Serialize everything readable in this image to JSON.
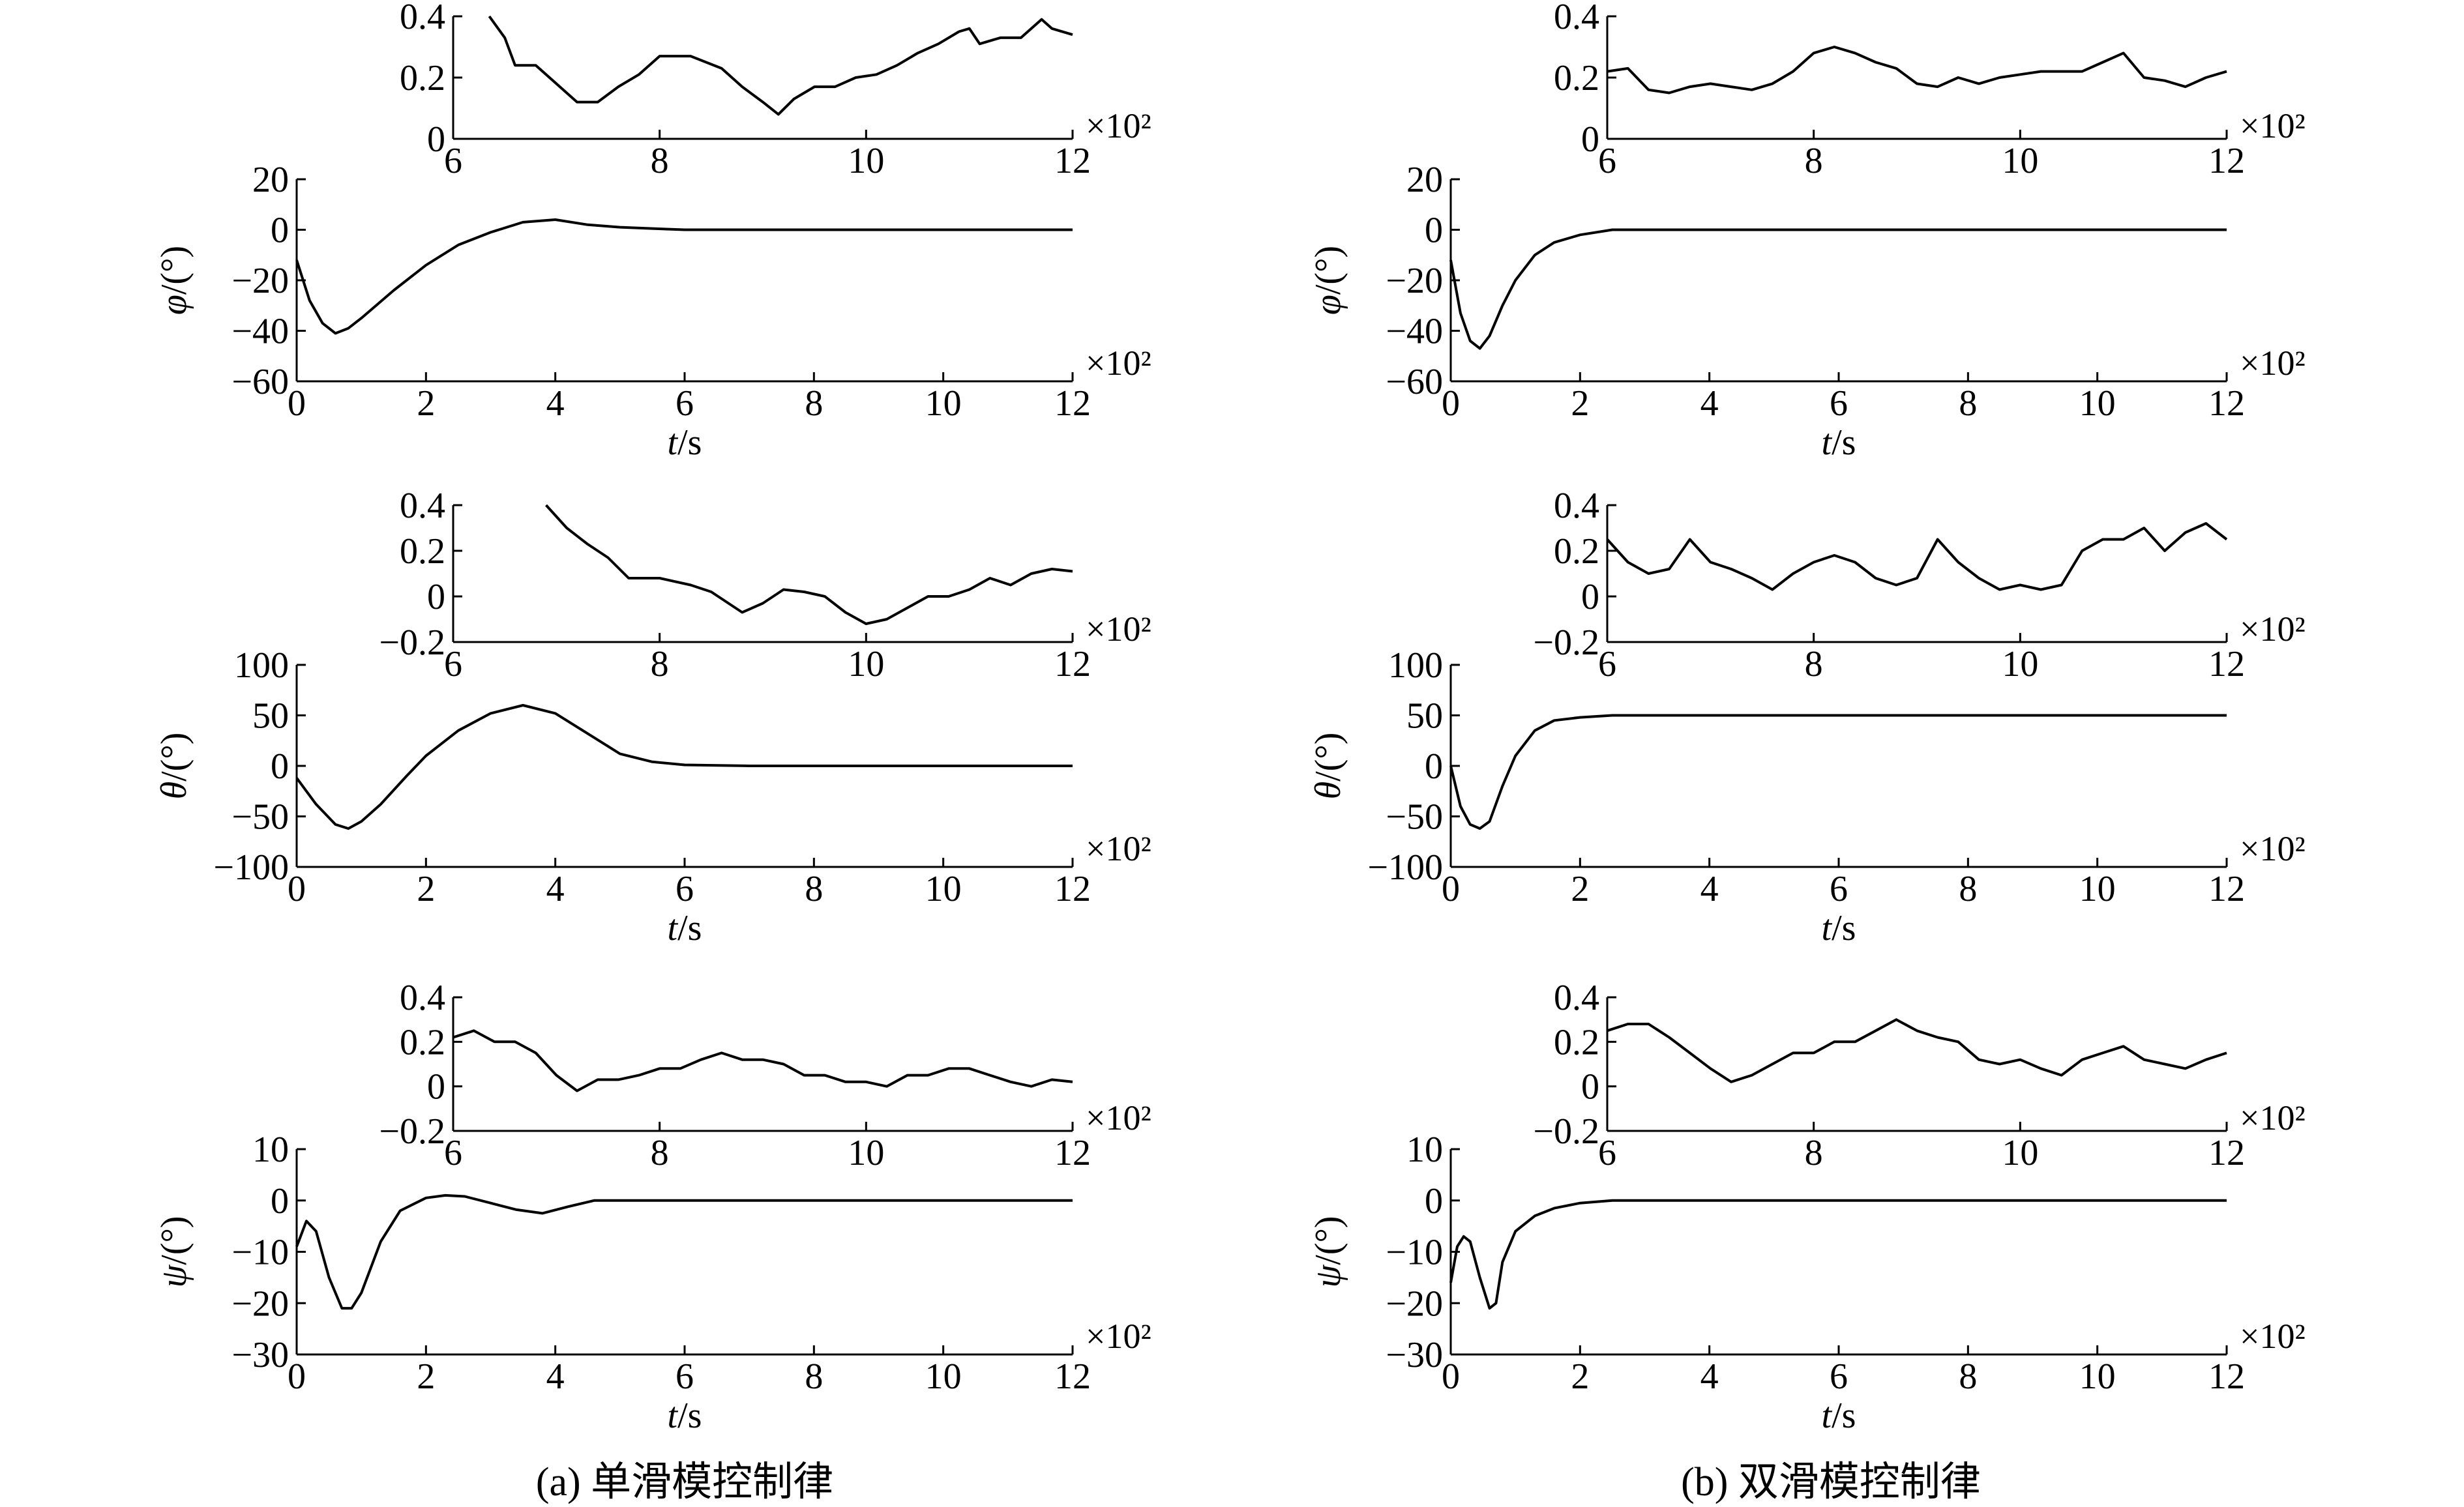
{
  "figure": {
    "caption_a": "(a) 单滑模控制律",
    "caption_b": "(b) 双滑模控制律"
  },
  "chart_data": [
    {
      "id": "a-phi-inset",
      "type": "line",
      "xlabel": "",
      "ylabel": "",
      "xlim": [
        6,
        12
      ],
      "ylim": [
        0,
        0.4
      ],
      "xticks": [
        "6",
        "8",
        "10",
        "12"
      ],
      "yticks": [
        "0",
        "0.2",
        "0.4"
      ],
      "xscale_label": "×10²",
      "series": [
        {
          "x": [
            6.35,
            6.5,
            6.6,
            6.8,
            7.0,
            7.2,
            7.4,
            7.6,
            7.8,
            8.0,
            8.3,
            8.6,
            8.8,
            9.0,
            9.15,
            9.3,
            9.5,
            9.7,
            9.9,
            10.1,
            10.3,
            10.5,
            10.7,
            10.9,
            11.0,
            11.1,
            11.3,
            11.5,
            11.7,
            11.8,
            12.0
          ],
          "y": [
            0.4,
            0.33,
            0.24,
            0.24,
            0.18,
            0.12,
            0.12,
            0.17,
            0.21,
            0.27,
            0.27,
            0.23,
            0.17,
            0.12,
            0.08,
            0.13,
            0.17,
            0.17,
            0.2,
            0.21,
            0.24,
            0.28,
            0.31,
            0.35,
            0.36,
            0.31,
            0.33,
            0.33,
            0.39,
            0.36,
            0.34
          ]
        }
      ]
    },
    {
      "id": "a-phi",
      "type": "line",
      "xlabel": "t/s",
      "ylabel": "φ/(°)",
      "xlim": [
        0,
        12
      ],
      "ylim": [
        -60,
        20
      ],
      "xticks": [
        "0",
        "2",
        "4",
        "6",
        "8",
        "10",
        "12"
      ],
      "yticks": [
        "-60",
        "-40",
        "-20",
        "0",
        "20"
      ],
      "xscale_label": "×10²",
      "series": [
        {
          "x": [
            0,
            0.2,
            0.4,
            0.6,
            0.8,
            1.0,
            1.5,
            2.0,
            2.5,
            3.0,
            3.5,
            4.0,
            4.5,
            5.0,
            5.5,
            6.0,
            6.5,
            7,
            8,
            9,
            10,
            11,
            12
          ],
          "y": [
            -12,
            -28,
            -37,
            -41,
            -39,
            -35,
            -24,
            -14,
            -6,
            -1,
            3,
            4,
            2,
            1,
            0.5,
            0,
            0,
            0,
            0,
            0,
            0,
            0,
            0
          ]
        }
      ]
    },
    {
      "id": "a-theta-inset",
      "type": "line",
      "xlabel": "",
      "ylabel": "",
      "xlim": [
        6,
        12
      ],
      "ylim": [
        -0.2,
        0.4
      ],
      "xticks": [
        "6",
        "8",
        "10",
        "12"
      ],
      "yticks": [
        "-0.2",
        "0",
        "0.2",
        "0.4"
      ],
      "xscale_label": "×10²",
      "series": [
        {
          "x": [
            6.9,
            7.1,
            7.3,
            7.5,
            7.7,
            8.0,
            8.3,
            8.5,
            8.8,
            9.0,
            9.2,
            9.4,
            9.6,
            9.8,
            10.0,
            10.2,
            10.4,
            10.6,
            10.8,
            11.0,
            11.2,
            11.4,
            11.6,
            11.8,
            12.0
          ],
          "y": [
            0.4,
            0.3,
            0.23,
            0.17,
            0.08,
            0.08,
            0.05,
            0.02,
            -0.07,
            -0.03,
            0.03,
            0.02,
            0.0,
            -0.07,
            -0.12,
            -0.1,
            -0.05,
            0.0,
            0.0,
            0.03,
            0.08,
            0.05,
            0.1,
            0.12,
            0.11
          ]
        }
      ]
    },
    {
      "id": "a-theta",
      "type": "line",
      "xlabel": "t/s",
      "ylabel": "θ/(°)",
      "xlim": [
        0,
        12
      ],
      "ylim": [
        -100,
        100
      ],
      "xticks": [
        "0",
        "2",
        "4",
        "6",
        "8",
        "10",
        "12"
      ],
      "yticks": [
        "-100",
        "-50",
        "0",
        "50",
        "100"
      ],
      "xscale_label": "×10²",
      "series": [
        {
          "x": [
            0,
            0.3,
            0.6,
            0.8,
            1.0,
            1.3,
            1.7,
            2.0,
            2.5,
            3.0,
            3.5,
            4.0,
            4.5,
            5.0,
            5.5,
            6.0,
            7,
            8,
            9,
            10,
            11,
            12
          ],
          "y": [
            -12,
            -38,
            -58,
            -62,
            -55,
            -38,
            -10,
            10,
            35,
            52,
            60,
            52,
            32,
            12,
            4,
            1,
            0,
            0,
            0,
            0,
            0,
            0
          ]
        }
      ]
    },
    {
      "id": "a-psi-inset",
      "type": "line",
      "xlabel": "",
      "ylabel": "",
      "xlim": [
        6,
        12
      ],
      "ylim": [
        -0.2,
        0.4
      ],
      "xticks": [
        "6",
        "8",
        "10",
        "12"
      ],
      "yticks": [
        "-0.2",
        "0",
        "0.2",
        "0.4"
      ],
      "xscale_label": "×10²",
      "series": [
        {
          "x": [
            6.0,
            6.2,
            6.4,
            6.6,
            6.8,
            7.0,
            7.2,
            7.4,
            7.6,
            7.8,
            8.0,
            8.2,
            8.4,
            8.6,
            8.8,
            9.0,
            9.2,
            9.4,
            9.6,
            9.8,
            10.0,
            10.2,
            10.4,
            10.6,
            10.8,
            11.0,
            11.2,
            11.4,
            11.6,
            11.8,
            12.0
          ],
          "y": [
            0.22,
            0.25,
            0.2,
            0.2,
            0.15,
            0.05,
            -0.02,
            0.03,
            0.03,
            0.05,
            0.08,
            0.08,
            0.12,
            0.15,
            0.12,
            0.12,
            0.1,
            0.05,
            0.05,
            0.02,
            0.02,
            0.0,
            0.05,
            0.05,
            0.08,
            0.08,
            0.05,
            0.02,
            0.0,
            0.03,
            0.02
          ]
        }
      ]
    },
    {
      "id": "a-psi",
      "type": "line",
      "xlabel": "t/s",
      "ylabel": "ψ/(°)",
      "xlim": [
        0,
        12
      ],
      "ylim": [
        -30,
        10
      ],
      "xticks": [
        "0",
        "2",
        "4",
        "6",
        "8",
        "10",
        "12"
      ],
      "yticks": [
        "-30",
        "-20",
        "-10",
        "0",
        "10"
      ],
      "xscale_label": "×10²",
      "series": [
        {
          "x": [
            0,
            0.15,
            0.3,
            0.5,
            0.7,
            0.85,
            1.0,
            1.3,
            1.6,
            2.0,
            2.3,
            2.6,
            3.0,
            3.4,
            3.8,
            4.2,
            4.6,
            5.0,
            6,
            7,
            8,
            9,
            10,
            11,
            12
          ],
          "y": [
            -9,
            -4,
            -6,
            -15,
            -21,
            -21,
            -18,
            -8,
            -2,
            0.5,
            1,
            0.8,
            -0.5,
            -1.8,
            -2.5,
            -1.2,
            0,
            0,
            0,
            0,
            0,
            0,
            0,
            0,
            0
          ]
        }
      ]
    },
    {
      "id": "b-phi-inset",
      "type": "line",
      "xlabel": "",
      "ylabel": "",
      "xlim": [
        6,
        12
      ],
      "ylim": [
        0,
        0.4
      ],
      "xticks": [
        "6",
        "8",
        "10",
        "12"
      ],
      "yticks": [
        "0",
        "0.2",
        "0.4"
      ],
      "xscale_label": "×10²",
      "series": [
        {
          "x": [
            6.0,
            6.2,
            6.4,
            6.6,
            6.8,
            7.0,
            7.2,
            7.4,
            7.6,
            7.8,
            8.0,
            8.2,
            8.4,
            8.6,
            8.8,
            9.0,
            9.2,
            9.4,
            9.6,
            9.8,
            10.0,
            10.2,
            10.4,
            10.6,
            10.8,
            11.0,
            11.2,
            11.4,
            11.6,
            11.8,
            12.0
          ],
          "y": [
            0.22,
            0.23,
            0.16,
            0.15,
            0.17,
            0.18,
            0.17,
            0.16,
            0.18,
            0.22,
            0.28,
            0.3,
            0.28,
            0.25,
            0.23,
            0.18,
            0.17,
            0.2,
            0.18,
            0.2,
            0.21,
            0.22,
            0.22,
            0.22,
            0.25,
            0.28,
            0.2,
            0.19,
            0.17,
            0.2,
            0.22
          ]
        }
      ]
    },
    {
      "id": "b-phi",
      "type": "line",
      "xlabel": "t/s",
      "ylabel": "φ/(°)",
      "xlim": [
        0,
        12
      ],
      "ylim": [
        -60,
        20
      ],
      "xticks": [
        "0",
        "2",
        "4",
        "6",
        "8",
        "10",
        "12"
      ],
      "yticks": [
        "-60",
        "-40",
        "-20",
        "0",
        "20"
      ],
      "xscale_label": "×10²",
      "series": [
        {
          "x": [
            0,
            0.15,
            0.3,
            0.45,
            0.6,
            0.8,
            1.0,
            1.3,
            1.6,
            2.0,
            2.5,
            3,
            4,
            5,
            6,
            7,
            8,
            9,
            10,
            11,
            12
          ],
          "y": [
            -12,
            -33,
            -44,
            -47,
            -42,
            -30,
            -20,
            -10,
            -5,
            -2,
            0,
            0,
            0,
            0,
            0,
            0,
            0,
            0,
            0,
            0,
            0
          ]
        }
      ]
    },
    {
      "id": "b-theta-inset",
      "type": "line",
      "xlabel": "",
      "ylabel": "",
      "xlim": [
        6,
        12
      ],
      "ylim": [
        -0.2,
        0.4
      ],
      "xticks": [
        "6",
        "8",
        "10",
        "12"
      ],
      "yticks": [
        "-0.2",
        "0",
        "0.2",
        "0.4"
      ],
      "xscale_label": "×10²",
      "series": [
        {
          "x": [
            6.0,
            6.2,
            6.4,
            6.6,
            6.8,
            7.0,
            7.2,
            7.4,
            7.6,
            7.8,
            8.0,
            8.2,
            8.4,
            8.6,
            8.8,
            9.0,
            9.2,
            9.4,
            9.6,
            9.8,
            10.0,
            10.2,
            10.4,
            10.6,
            10.8,
            11.0,
            11.2,
            11.4,
            11.6,
            11.8,
            12.0
          ],
          "y": [
            0.25,
            0.15,
            0.1,
            0.12,
            0.25,
            0.15,
            0.12,
            0.08,
            0.03,
            0.1,
            0.15,
            0.18,
            0.15,
            0.08,
            0.05,
            0.08,
            0.25,
            0.15,
            0.08,
            0.03,
            0.05,
            0.03,
            0.05,
            0.2,
            0.25,
            0.25,
            0.3,
            0.2,
            0.28,
            0.32,
            0.25
          ]
        }
      ]
    },
    {
      "id": "b-theta",
      "type": "line",
      "xlabel": "t/s",
      "ylabel": "θ/(°)",
      "xlim": [
        0,
        12
      ],
      "ylim": [
        -100,
        100
      ],
      "xticks": [
        "0",
        "2",
        "4",
        "6",
        "8",
        "10",
        "12"
      ],
      "yticks": [
        "-100",
        "-50",
        "0",
        "50",
        "100"
      ],
      "xscale_label": "×10²",
      "series": [
        {
          "x": [
            0,
            0.15,
            0.3,
            0.45,
            0.6,
            0.8,
            1.0,
            1.3,
            1.6,
            2.0,
            2.5,
            3,
            4,
            5,
            6,
            7,
            8,
            9,
            10,
            11,
            12
          ],
          "y": [
            0,
            -40,
            -58,
            -62,
            -55,
            -20,
            10,
            35,
            45,
            48,
            50,
            50,
            50,
            50,
            50,
            50,
            50,
            50,
            50,
            50,
            50
          ]
        }
      ]
    },
    {
      "id": "b-psi-inset",
      "type": "line",
      "xlabel": "",
      "ylabel": "",
      "xlim": [
        6,
        12
      ],
      "ylim": [
        -0.2,
        0.4
      ],
      "xticks": [
        "6",
        "8",
        "10",
        "12"
      ],
      "yticks": [
        "-0.2",
        "0",
        "0.2",
        "0.4"
      ],
      "xscale_label": "×10²",
      "series": [
        {
          "x": [
            6.0,
            6.2,
            6.4,
            6.6,
            6.8,
            7.0,
            7.2,
            7.4,
            7.6,
            7.8,
            8.0,
            8.2,
            8.4,
            8.6,
            8.8,
            9.0,
            9.2,
            9.4,
            9.6,
            9.8,
            10.0,
            10.2,
            10.4,
            10.6,
            10.8,
            11.0,
            11.2,
            11.4,
            11.6,
            11.8,
            12.0
          ],
          "y": [
            0.25,
            0.28,
            0.28,
            0.22,
            0.15,
            0.08,
            0.02,
            0.05,
            0.1,
            0.15,
            0.15,
            0.2,
            0.2,
            0.25,
            0.3,
            0.25,
            0.22,
            0.2,
            0.12,
            0.1,
            0.12,
            0.08,
            0.05,
            0.12,
            0.15,
            0.18,
            0.12,
            0.1,
            0.08,
            0.12,
            0.15
          ]
        }
      ]
    },
    {
      "id": "b-psi",
      "type": "line",
      "xlabel": "t/s",
      "ylabel": "ψ/(°)",
      "xlim": [
        0,
        12
      ],
      "ylim": [
        -30,
        10
      ],
      "xticks": [
        "0",
        "2",
        "4",
        "6",
        "8",
        "10",
        "12"
      ],
      "yticks": [
        "-30",
        "-20",
        "-10",
        "0",
        "10"
      ],
      "xscale_label": "×10²",
      "series": [
        {
          "x": [
            0,
            0.1,
            0.2,
            0.3,
            0.45,
            0.6,
            0.7,
            0.8,
            1.0,
            1.3,
            1.6,
            2.0,
            2.5,
            3,
            4,
            5,
            6,
            7,
            8,
            9,
            10,
            11,
            12
          ],
          "y": [
            -16,
            -9,
            -7,
            -8,
            -15,
            -21,
            -20,
            -12,
            -6,
            -3,
            -1.5,
            -0.5,
            0,
            0,
            0,
            0,
            0,
            0,
            0,
            0,
            0,
            0,
            0
          ]
        }
      ]
    }
  ]
}
